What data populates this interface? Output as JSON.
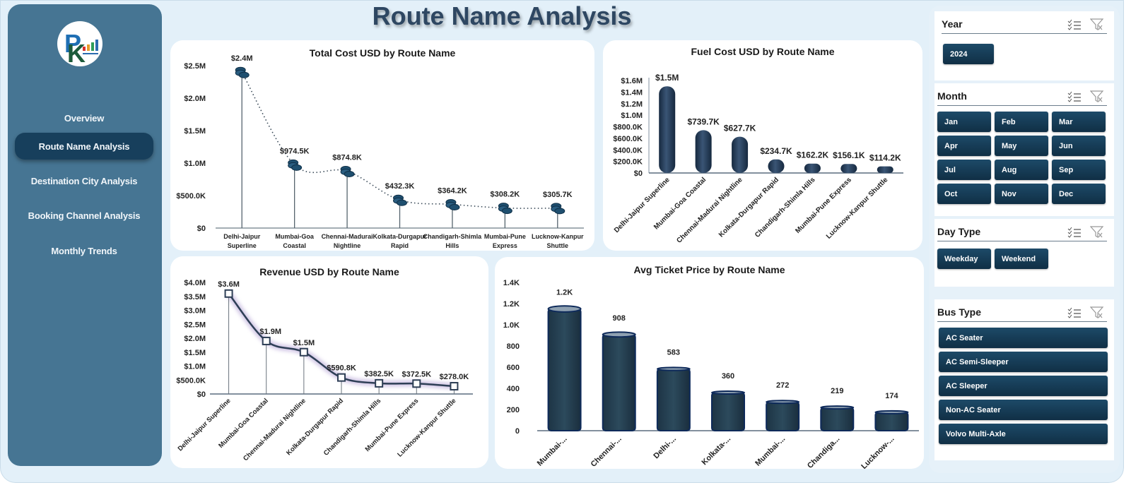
{
  "page": {
    "title": "Route Name Analysis"
  },
  "sidebar": {
    "logo_alt": "company-logo",
    "items": [
      {
        "label": "Overview",
        "active": false
      },
      {
        "label": "Route Name Analysis",
        "active": true
      },
      {
        "label": "Destination City  Analysis",
        "active": false
      },
      {
        "label": "Booking Channel Analysis",
        "active": false
      },
      {
        "label": "Monthly Trends",
        "active": false
      }
    ]
  },
  "colors": {
    "sidebar_bg": "#467593",
    "active_nav": "#173f5c",
    "chip_bg": "#153a55",
    "bar_fill": "#1e3550",
    "page_bg": "#e3f0f9"
  },
  "filters": {
    "year": {
      "title": "Year",
      "options": [
        "2024"
      ]
    },
    "month": {
      "title": "Month",
      "options": [
        "Jan",
        "Feb",
        "Mar",
        "Apr",
        "May",
        "Jun",
        "Jul",
        "Aug",
        "Sep",
        "Oct",
        "Nov",
        "Dec"
      ]
    },
    "day_type": {
      "title": "Day Type",
      "options": [
        "Weekday",
        "Weekend"
      ]
    },
    "bus_type": {
      "title": "Bus Type",
      "options": [
        "AC Seater",
        "AC Semi-Sleeper",
        "AC Sleeper",
        "Non-AC Seater",
        "Volvo Multi-Axle"
      ]
    },
    "icons": {
      "multiselect": "multi-select-icon",
      "clear": "clear-filter-icon"
    }
  },
  "chart_data": [
    {
      "id": "total_cost",
      "type": "line",
      "title": "Total Cost USD by Route Name",
      "categories": [
        "Delhi-Jaipur Superline",
        "Mumbai-Goa Coastal",
        "Chennai-Madurai Nightline",
        "Kolkata-Durgapur Rapid",
        "Chandigarh-Shimla Hills",
        "Mumbai-Pune Express",
        "Lucknow-Kanpur Shuttle"
      ],
      "category_lines": [
        [
          "Delhi-Jaipur",
          "Superline"
        ],
        [
          "Mumbai-Goa",
          "Coastal"
        ],
        [
          "Chennai-Madurai",
          "Nightline"
        ],
        [
          "Kolkata-Durgapur",
          "Rapid"
        ],
        [
          "Chandigarh-Shimla",
          "Hills"
        ],
        [
          "Mumbai-Pune",
          "Express"
        ],
        [
          "Lucknow-Kanpur",
          "Shuttle"
        ]
      ],
      "values": [
        2400000,
        974500,
        874800,
        432300,
        364200,
        308200,
        305700
      ],
      "labels": [
        "$2.4M",
        "$974.5K",
        "$874.8K",
        "$432.3K",
        "$364.2K",
        "$308.2K",
        "$305.7K"
      ],
      "yticks": [
        "$0",
        "$500.0K",
        "$1.0M",
        "$1.5M",
        "$2.0M",
        "$2.5M"
      ],
      "ylim": [
        0,
        2500000
      ],
      "marker": "coin-stack",
      "line_style": "dotted"
    },
    {
      "id": "fuel_cost",
      "type": "bar",
      "title": "Fuel Cost USD by Route Name",
      "categories": [
        "Delhi-Jaipur Superline",
        "Mumbai-Goa Coastal",
        "Chennai-Madurai Nightline",
        "Kolkata-Durgapur Rapid",
        "Chandigarh-Shimla Hills",
        "Mumbai-Pune Express",
        "Lucknow-Kanpur Shuttle"
      ],
      "values": [
        1500000,
        739700,
        627700,
        234700,
        162200,
        156100,
        114200
      ],
      "labels": [
        "$1.5M",
        "$739.7K",
        "$627.7K",
        "$234.7K",
        "$162.2K",
        "$156.1K",
        "$114.2K"
      ],
      "yticks": [
        "$0",
        "$200.0K",
        "$400.0K",
        "$600.0K",
        "$800.0K",
        "$1.0M",
        "$1.2M",
        "$1.4M",
        "$1.6M"
      ],
      "ylim": [
        0,
        1600000
      ]
    },
    {
      "id": "revenue",
      "type": "line",
      "title": "Revenue USD by Route Name",
      "categories": [
        "Delhi-Jaipur Superline",
        "Mumbai-Goa Coastal",
        "Chennai-Madurai Nightline",
        "Kolkata-Durgapur Rapid",
        "Chandigarh-Shimla Hills",
        "Mumbai-Pune Express",
        "Lucknow-Kanpur Shuttle"
      ],
      "values": [
        3600000,
        1900000,
        1500000,
        590800,
        382500,
        372500,
        278000
      ],
      "labels": [
        "$3.6M",
        "$1.9M",
        "$1.5M",
        "$590.8K",
        "$382.5K",
        "$372.5K",
        "$278.0K"
      ],
      "yticks": [
        "$0",
        "$500.0K",
        "$1.0M",
        "$1.5M",
        "$2.0M",
        "$2.5M",
        "$3.0M",
        "$3.5M",
        "$4.0M"
      ],
      "ylim": [
        0,
        4000000
      ],
      "marker": "square",
      "line_style": "smooth"
    },
    {
      "id": "avg_ticket",
      "type": "bar",
      "title": "Avg Ticket Price by Route Name",
      "categories": [
        "Mumbai-...",
        "Chennai-...",
        "Delhi-...",
        "Kolkata-...",
        "Mumbai-...",
        "Chandiga...",
        "Lucknow-..."
      ],
      "values": [
        1150,
        908,
        583,
        360,
        272,
        219,
        174
      ],
      "labels": [
        "1.2K",
        "908",
        "583",
        "360",
        "272",
        "219",
        "174"
      ],
      "yticks": [
        "0",
        "200",
        "400",
        "600",
        "800",
        "1.0K",
        "1.2K",
        "1.4K"
      ],
      "ylim": [
        0,
        1400
      ],
      "shape": "cylinder"
    }
  ]
}
